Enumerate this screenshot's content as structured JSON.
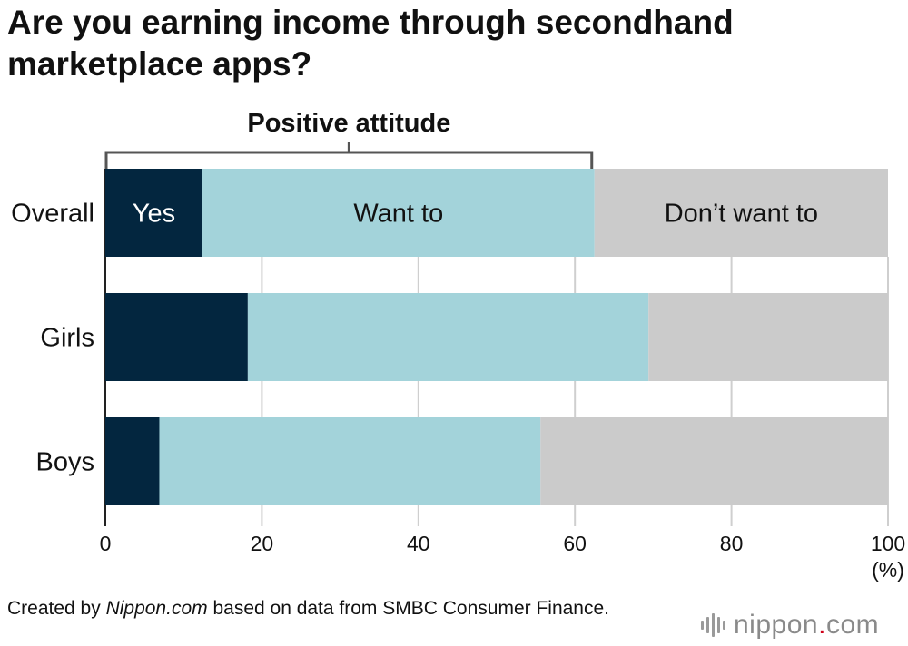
{
  "chart_data": {
    "type": "bar",
    "orientation": "horizontal",
    "stacked": true,
    "title": "Are you earning income through secondhand marketplace apps?",
    "categories": [
      "Overall",
      "Girls",
      "Boys"
    ],
    "series": [
      {
        "name": "Yes",
        "color": "#03263f",
        "values": [
          12.4,
          18.2,
          6.9
        ]
      },
      {
        "name": "Want to",
        "color": "#a3d3da",
        "values": [
          50.1,
          51.2,
          48.7
        ]
      },
      {
        "name": "Don’t want to",
        "color": "#cbcbcb",
        "values": [
          37.5,
          30.6,
          44.4
        ]
      }
    ],
    "series_labels_on": "Overall",
    "xlim": [
      0,
      100
    ],
    "xticks": [
      "0",
      "20",
      "40",
      "60",
      "80",
      "100"
    ],
    "x_unit": "(%)",
    "grid": "vertical",
    "annotation": {
      "text": "Positive attitude",
      "range": [
        0,
        62.5
      ]
    }
  },
  "source": {
    "prefix": "Created by ",
    "site": "Nippon.com",
    "suffix": " based on data from SMBC Consumer Finance."
  },
  "logo": {
    "name": "nippon",
    "dot": ".",
    "tld": "com"
  }
}
